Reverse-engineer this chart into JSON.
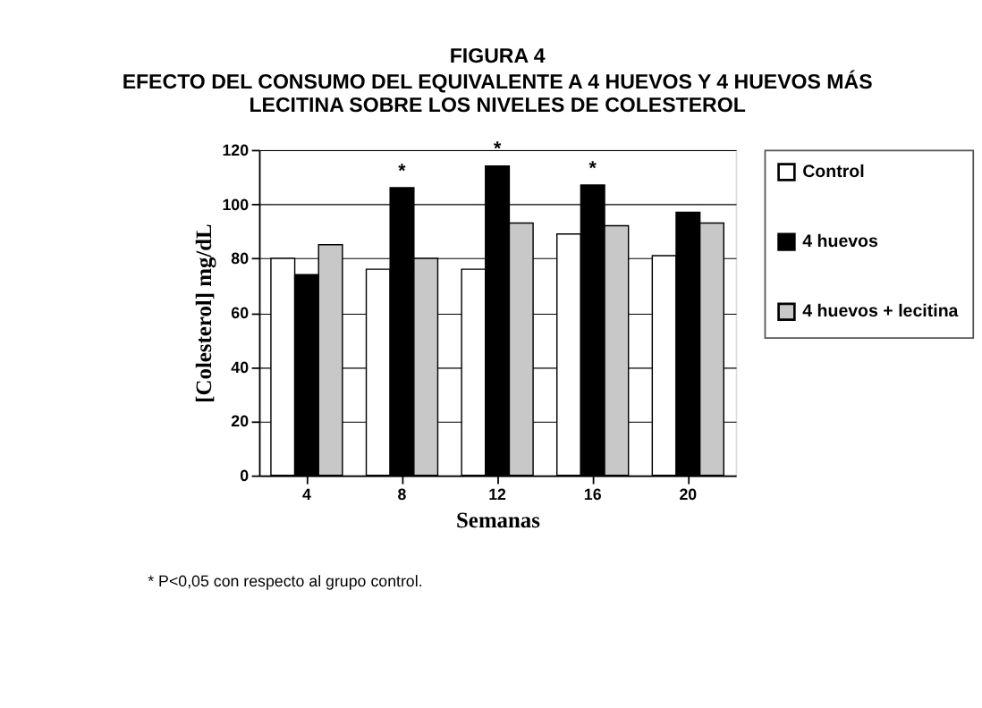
{
  "chart_data": {
    "type": "bar",
    "title": "FIGURA 4",
    "subtitle": "EFECTO DEL CONSUMO DEL EQUIVALENTE A 4 HUEVOS Y 4 HUEVOS MÁS LECITINA SOBRE LOS NIVELES DE COLESTEROL",
    "xlabel": "Semanas",
    "ylabel": "[Colesterol]  mg/dL",
    "categories": [
      "4",
      "8",
      "12",
      "16",
      "20"
    ],
    "series": [
      {
        "name": "Control",
        "color": "#ffffff",
        "values": [
          80,
          76,
          76,
          89,
          81
        ]
      },
      {
        "name": "4 huevos",
        "color": "#000000",
        "values": [
          74,
          106,
          114,
          107,
          97
        ]
      },
      {
        "name": "4 huevos + lecitina",
        "color": "#c8c8c8",
        "values": [
          85,
          80,
          93,
          92,
          93
        ]
      }
    ],
    "ylim": [
      0,
      120
    ],
    "yticks": [
      0,
      20,
      40,
      60,
      80,
      100,
      120
    ],
    "grid": "y",
    "legend": "right",
    "annotations": [
      {
        "text": "*",
        "x": "8",
        "y": 106
      },
      {
        "text": "*",
        "x": "12",
        "y": 114
      },
      {
        "text": "*",
        "x": "16",
        "y": 107
      },
      "*    P<0,05 con respecto al grupo control."
    ]
  }
}
